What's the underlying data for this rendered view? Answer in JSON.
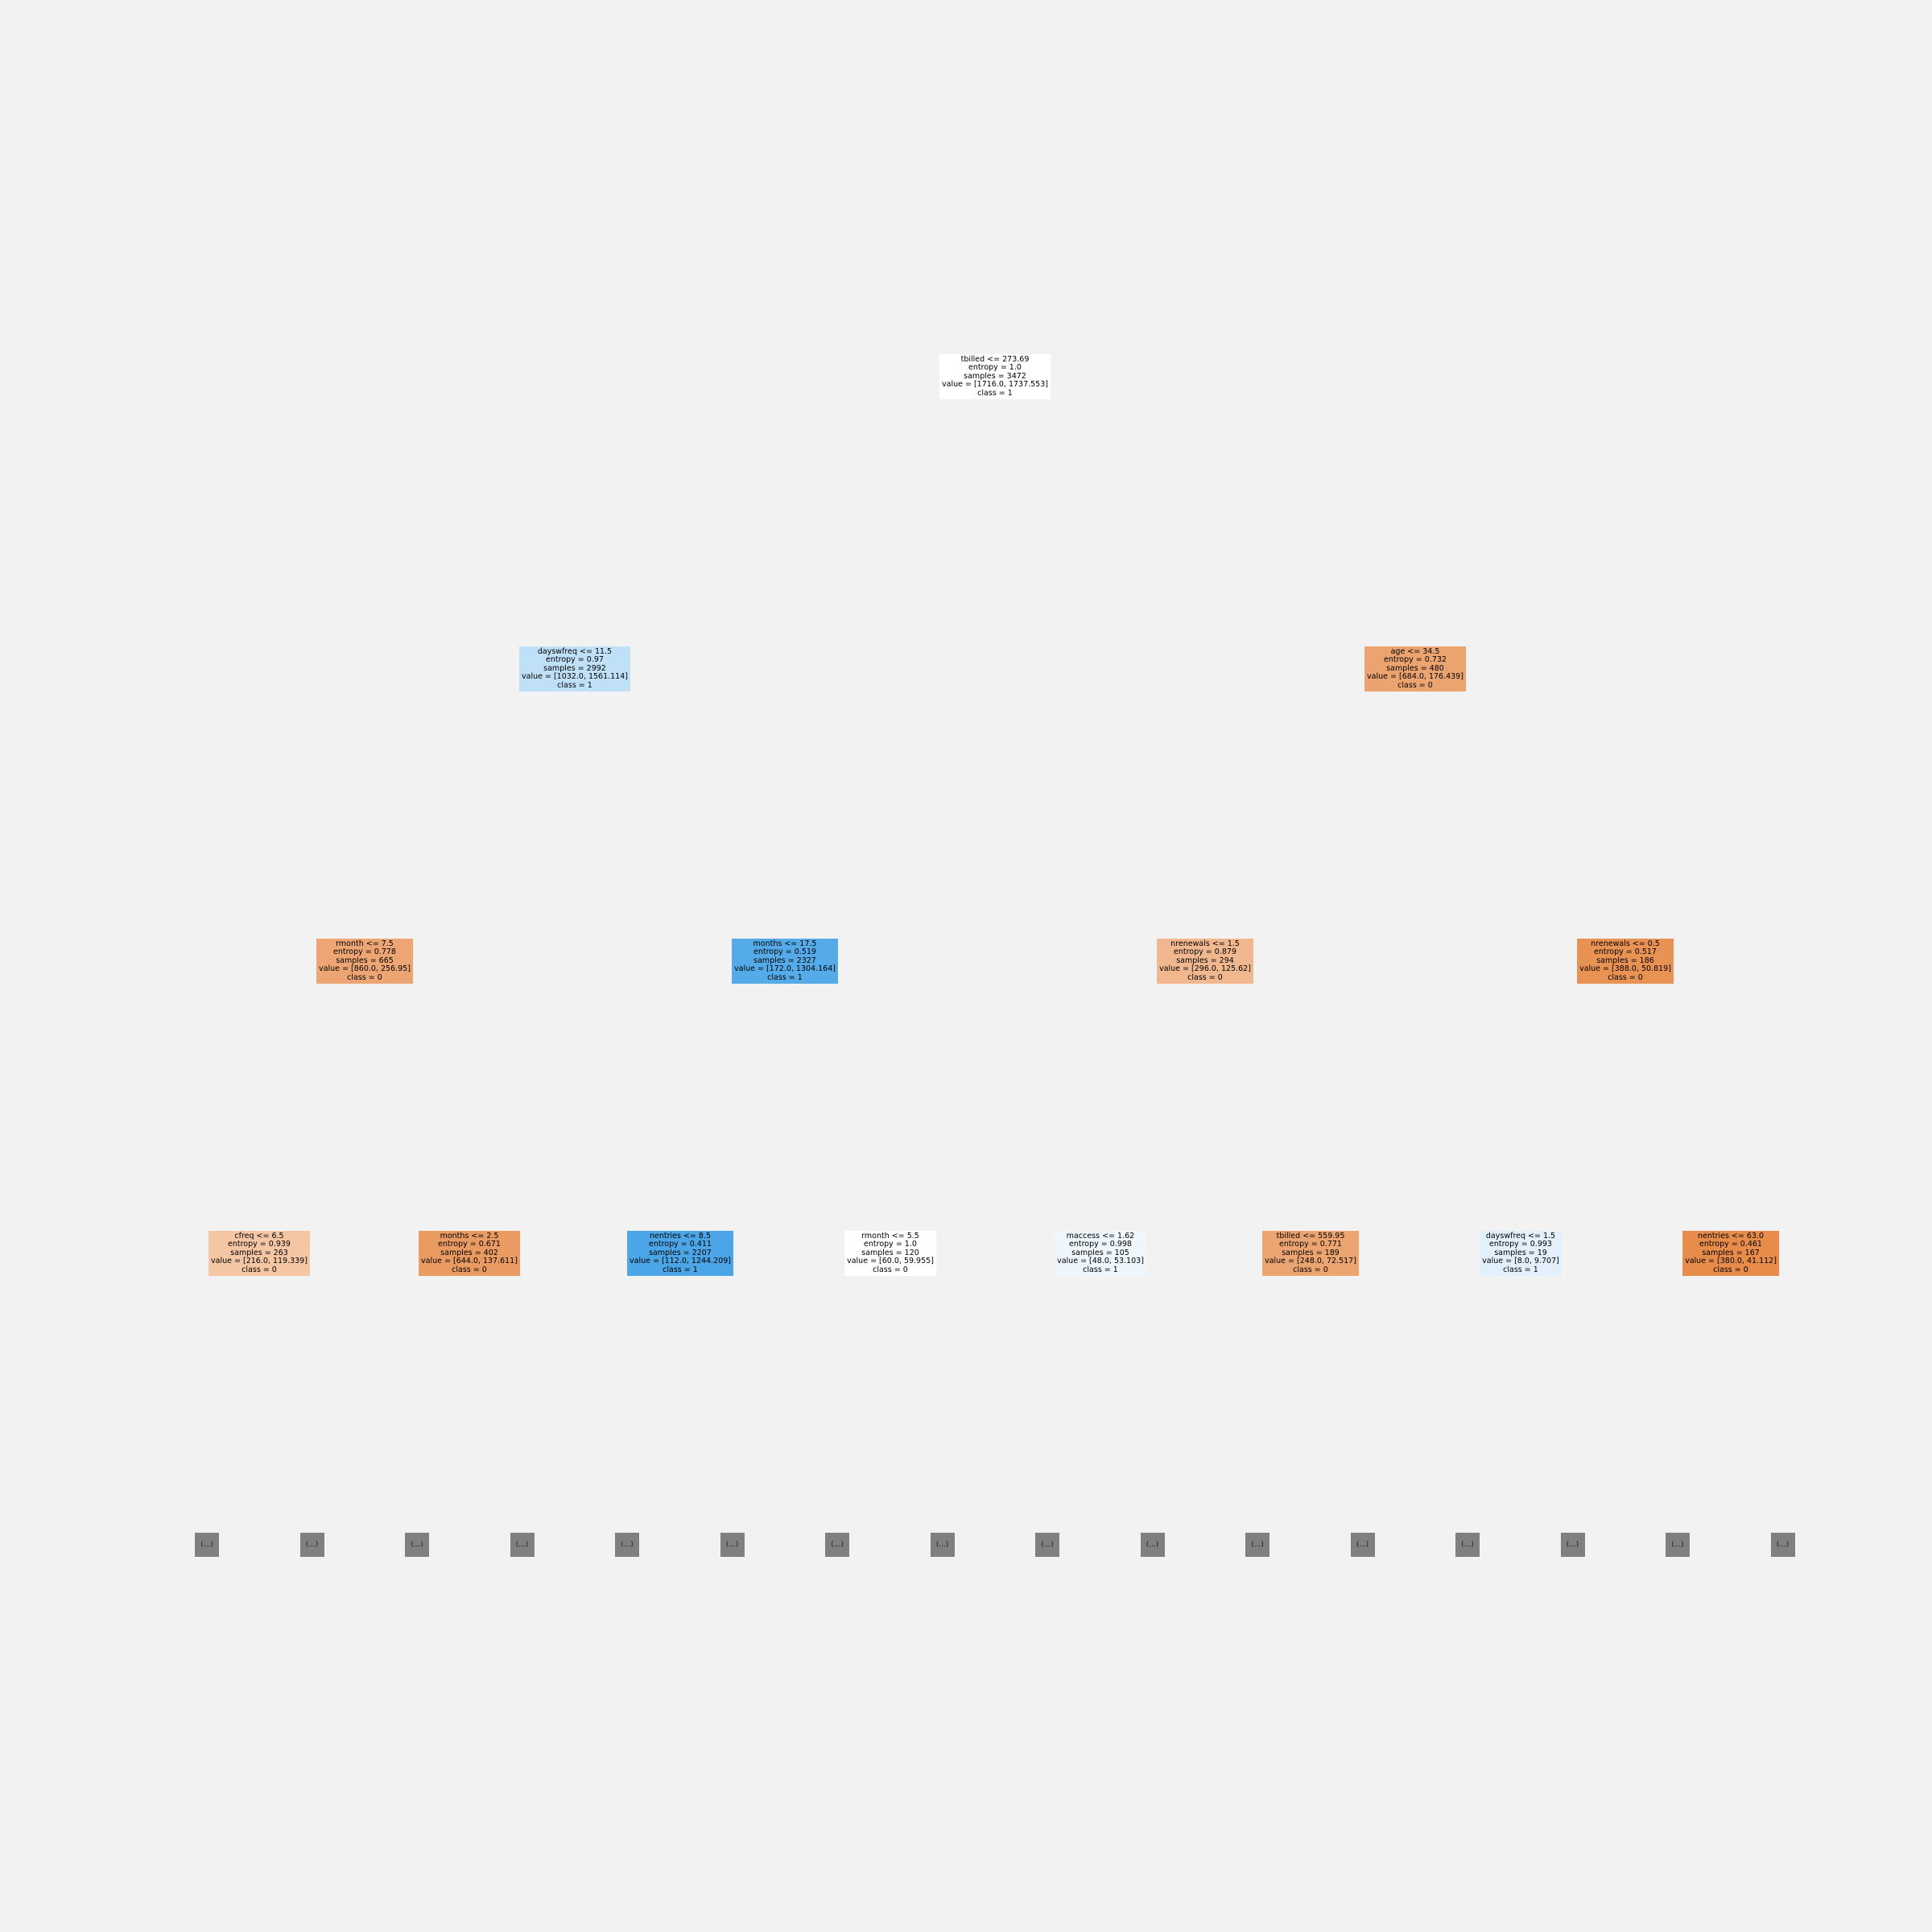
{
  "tree": {
    "nodes": [
      {
        "id": "n0",
        "depth": 0,
        "slot": 0,
        "fill": "#ffffff",
        "lines": [
          "tbilled <= 273.69",
          "entropy = 1.0",
          "samples = 3472",
          "value = [1716.0, 1737.553]",
          "class = 1"
        ]
      },
      {
        "id": "n1",
        "depth": 1,
        "slot": 0,
        "fill": "#c0e0f8",
        "lines": [
          "dayswfreq <= 11.5",
          "entropy = 0.97",
          "samples = 2992",
          "value = [1032.0, 1561.114]",
          "class = 1"
        ]
      },
      {
        "id": "n2",
        "depth": 1,
        "slot": 1,
        "fill": "#eba470",
        "lines": [
          "age <= 34.5",
          "entropy = 0.732",
          "samples = 480",
          "value = [684.0, 176.439]",
          "class = 0"
        ]
      },
      {
        "id": "n3",
        "depth": 2,
        "slot": 0,
        "fill": "#eda574",
        "lines": [
          "rmonth <= 7.5",
          "entropy = 0.778",
          "samples = 665",
          "value = [860.0, 256.95]",
          "class = 0"
        ]
      },
      {
        "id": "n4",
        "depth": 2,
        "slot": 1,
        "fill": "#55abe8",
        "lines": [
          "months <= 17.5",
          "entropy = 0.519",
          "samples = 2327",
          "value = [172.0, 1304.164]",
          "class = 1"
        ]
      },
      {
        "id": "n5",
        "depth": 2,
        "slot": 2,
        "fill": "#f1b88f",
        "lines": [
          "nrenewals <= 1.5",
          "entropy = 0.879",
          "samples = 294",
          "value = [296.0, 125.62]",
          "class = 0"
        ]
      },
      {
        "id": "n6",
        "depth": 2,
        "slot": 3,
        "fill": "#e89254",
        "lines": [
          "nrenewals <= 0.5",
          "entropy = 0.517",
          "samples = 186",
          "value = [388.0, 50.819]",
          "class = 0"
        ]
      },
      {
        "id": "n7",
        "depth": 3,
        "slot": 0,
        "fill": "#f4c6a4",
        "lines": [
          "cfreq <= 6.5",
          "entropy = 0.939",
          "samples = 263",
          "value = [216.0, 119.339]",
          "class = 0"
        ]
      },
      {
        "id": "n8",
        "depth": 3,
        "slot": 1,
        "fill": "#e99b62",
        "lines": [
          "months <= 2.5",
          "entropy = 0.671",
          "samples = 402",
          "value = [644.0, 137.611]",
          "class = 0"
        ]
      },
      {
        "id": "n9",
        "depth": 3,
        "slot": 2,
        "fill": "#4ca5e7",
        "lines": [
          "nentries <= 8.5",
          "entropy = 0.411",
          "samples = 2207",
          "value = [112.0, 1244.209]",
          "class = 1"
        ]
      },
      {
        "id": "n10",
        "depth": 3,
        "slot": 3,
        "fill": "#ffffff",
        "lines": [
          "rmonth <= 5.5",
          "entropy = 1.0",
          "samples = 120",
          "value = [60.0, 59.955]",
          "class = 0"
        ]
      },
      {
        "id": "n11",
        "depth": 3,
        "slot": 4,
        "fill": "#eff7fd",
        "lines": [
          "maccess <= 1.62",
          "entropy = 0.998",
          "samples = 105",
          "value = [48.0, 53.103]",
          "class = 1"
        ]
      },
      {
        "id": "n12",
        "depth": 3,
        "slot": 5,
        "fill": "#eca571",
        "lines": [
          "tbilled <= 559.95",
          "entropy = 0.771",
          "samples = 189",
          "value = [248.0, 72.517]",
          "class = 0"
        ]
      },
      {
        "id": "n13",
        "depth": 3,
        "slot": 6,
        "fill": "#e1f0fb",
        "lines": [
          "dayswfreq <= 1.5",
          "entropy = 0.993",
          "samples = 19",
          "value = [8.0, 9.707]",
          "class = 1"
        ]
      },
      {
        "id": "n14",
        "depth": 3,
        "slot": 7,
        "fill": "#e78c4a",
        "lines": [
          "nentries <= 63.0",
          "entropy = 0.461",
          "samples = 167",
          "value = [380.0, 41.112]",
          "class = 0"
        ]
      }
    ],
    "truncated_label": "(...)",
    "truncated_count": 16,
    "truncated_fill": "#808080"
  }
}
